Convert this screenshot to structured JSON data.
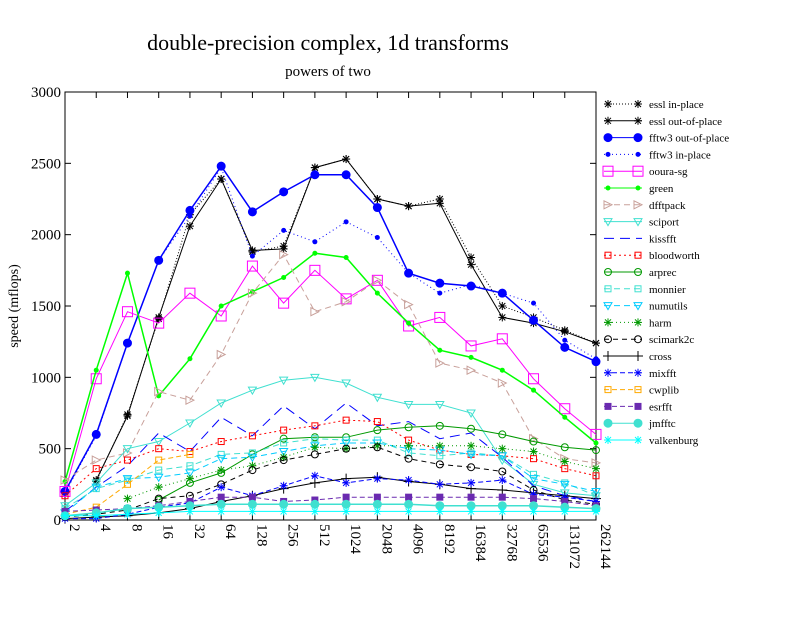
{
  "chart_data": {
    "type": "line",
    "title": "double-precision complex, 1d transforms",
    "subtitle": "powers of two",
    "xlabel": "",
    "ylabel": "speed (mflops)",
    "x_scale": "log2",
    "categories": [
      "2",
      "4",
      "8",
      "16",
      "32",
      "64",
      "128",
      "256",
      "512",
      "1024",
      "2048",
      "4096",
      "8192",
      "16384",
      "32768",
      "65536",
      "131072",
      "262144"
    ],
    "ylim": [
      0,
      3000
    ],
    "yticks": [
      0,
      500,
      1000,
      1500,
      2000,
      2500,
      3000
    ],
    "grid": false,
    "legend_position": "right",
    "series": [
      {
        "name": "essl in-place",
        "color": "#000000",
        "dash": "1,2",
        "marker": "star",
        "values": [
          null,
          270,
          740,
          1410,
          2140,
          2390,
          1880,
          1920,
          2470,
          2530,
          2250,
          2200,
          2250,
          1840,
          1500,
          1420,
          1330,
          1240
        ]
      },
      {
        "name": "essl out-of-place",
        "color": "#000000",
        "dash": "",
        "marker": "star",
        "values": [
          null,
          280,
          730,
          1420,
          2060,
          2390,
          1890,
          1900,
          2470,
          2530,
          2250,
          2200,
          2220,
          1790,
          1420,
          1380,
          1320,
          1240
        ]
      },
      {
        "name": "fftw3 out-of-place",
        "color": "#0000ff",
        "dash": "",
        "marker": "filled-circle",
        "values": [
          200,
          600,
          1240,
          1820,
          2170,
          2480,
          2160,
          2300,
          2420,
          2420,
          2190,
          1730,
          1660,
          1640,
          1590,
          1400,
          1210,
          1110
        ]
      },
      {
        "name": "fftw3 in-place",
        "color": "#0000ff",
        "dash": "1,3",
        "marker": "dot",
        "values": [
          190,
          590,
          1240,
          1820,
          2130,
          2470,
          1850,
          2030,
          1950,
          2090,
          1980,
          1730,
          1590,
          1650,
          1590,
          1520,
          1260,
          1130
        ]
      },
      {
        "name": "ooura-sg",
        "color": "#ff00ff",
        "dash": "",
        "marker": "open-square",
        "values": [
          200,
          990,
          1460,
          1380,
          1590,
          1430,
          1780,
          1520,
          1750,
          1550,
          1680,
          1360,
          1420,
          1220,
          1270,
          990,
          780,
          600
        ]
      },
      {
        "name": "green",
        "color": "#00ff00",
        "dash": "",
        "marker": "dot",
        "values": [
          270,
          1050,
          1730,
          870,
          1130,
          1500,
          1600,
          1700,
          1870,
          1840,
          1590,
          1380,
          1190,
          1140,
          1050,
          910,
          720,
          540
        ]
      },
      {
        "name": "dfftpack",
        "color": "#c8a09a",
        "dash": "6,4",
        "marker": "open-triangle-right",
        "values": [
          280,
          420,
          470,
          900,
          840,
          1160,
          1590,
          1860,
          1460,
          1530,
          1680,
          1510,
          1100,
          1050,
          960,
          570,
          430,
          400
        ]
      },
      {
        "name": "sciport",
        "color": "#40e0d0",
        "dash": "",
        "marker": "open-triangle-down",
        "values": [
          100,
          260,
          500,
          550,
          680,
          820,
          910,
          980,
          1000,
          960,
          860,
          810,
          810,
          750,
          420,
          250,
          190,
          170
        ]
      },
      {
        "name": "kissfft",
        "color": "#0000ff",
        "dash": "10,6",
        "marker": "none",
        "values": [
          60,
          230,
          380,
          610,
          480,
          720,
          590,
          800,
          640,
          820,
          660,
          690,
          570,
          610,
          440,
          240,
          170,
          130
        ]
      },
      {
        "name": "bloodworth",
        "color": "#ff0000",
        "dash": "2,3",
        "marker": "open-square-small",
        "values": [
          170,
          360,
          420,
          500,
          480,
          550,
          590,
          630,
          660,
          700,
          690,
          560,
          490,
          460,
          450,
          430,
          360,
          310
        ]
      },
      {
        "name": "arprec",
        "color": "#009900",
        "dash": "",
        "marker": "open-circle",
        "values": [
          null,
          null,
          null,
          140,
          260,
          330,
          460,
          570,
          580,
          580,
          630,
          650,
          660,
          640,
          600,
          550,
          510,
          490
        ]
      },
      {
        "name": "monnier",
        "color": "#40e0d0",
        "dash": "6,4",
        "marker": "open-square-small",
        "values": [
          80,
          220,
          280,
          350,
          380,
          460,
          470,
          540,
          570,
          560,
          560,
          470,
          450,
          470,
          450,
          320,
          260,
          170
        ]
      },
      {
        "name": "numutils",
        "color": "#00ccff",
        "dash": "6,4",
        "marker": "open-triangle-down",
        "values": [
          50,
          230,
          290,
          300,
          330,
          430,
          440,
          480,
          520,
          540,
          540,
          500,
          490,
          460,
          450,
          290,
          250,
          200
        ]
      },
      {
        "name": "harm",
        "color": "#009900",
        "dash": "1,3",
        "marker": "star",
        "values": [
          null,
          null,
          150,
          230,
          290,
          350,
          380,
          440,
          510,
          500,
          520,
          520,
          520,
          520,
          500,
          480,
          410,
          360
        ]
      },
      {
        "name": "scimark2c",
        "color": "#000000",
        "dash": "5,4",
        "marker": "open-circle",
        "values": [
          20,
          40,
          70,
          150,
          170,
          250,
          350,
          420,
          460,
          500,
          510,
          430,
          390,
          370,
          340,
          210,
          140,
          110
        ]
      },
      {
        "name": "cross",
        "color": "#000000",
        "dash": "",
        "marker": "plus",
        "values": [
          10,
          20,
          30,
          50,
          80,
          130,
          170,
          220,
          260,
          290,
          300,
          270,
          250,
          220,
          210,
          190,
          170,
          150
        ]
      },
      {
        "name": "mixfft",
        "color": "#0000ff",
        "dash": "5,3",
        "marker": "star",
        "values": [
          10,
          10,
          40,
          90,
          120,
          230,
          170,
          240,
          310,
          260,
          290,
          280,
          250,
          260,
          280,
          180,
          160,
          130
        ]
      },
      {
        "name": "cwplib",
        "color": "#ffaa00",
        "dash": "5,3",
        "marker": "open-square-small",
        "values": [
          40,
          90,
          250,
          420,
          460,
          null,
          null,
          null,
          null,
          null,
          null,
          null,
          null,
          null,
          null,
          null,
          null,
          null
        ]
      },
      {
        "name": "esrfft",
        "color": "#6a2ab0",
        "dash": "5,3",
        "marker": "filled-square",
        "values": [
          60,
          70,
          80,
          100,
          130,
          160,
          160,
          130,
          140,
          160,
          160,
          160,
          160,
          160,
          160,
          150,
          130,
          100
        ]
      },
      {
        "name": "jmfftc",
        "color": "#40e0d0",
        "dash": "",
        "marker": "filled-circle",
        "values": [
          30,
          50,
          80,
          90,
          100,
          110,
          110,
          110,
          110,
          110,
          110,
          110,
          100,
          100,
          100,
          100,
          90,
          80
        ]
      },
      {
        "name": "valkenburg",
        "color": "#00ffff",
        "dash": "",
        "marker": "star",
        "values": [
          30,
          30,
          40,
          50,
          60,
          60,
          60,
          60,
          60,
          60,
          60,
          60,
          60,
          60,
          60,
          60,
          60,
          60
        ]
      }
    ]
  }
}
